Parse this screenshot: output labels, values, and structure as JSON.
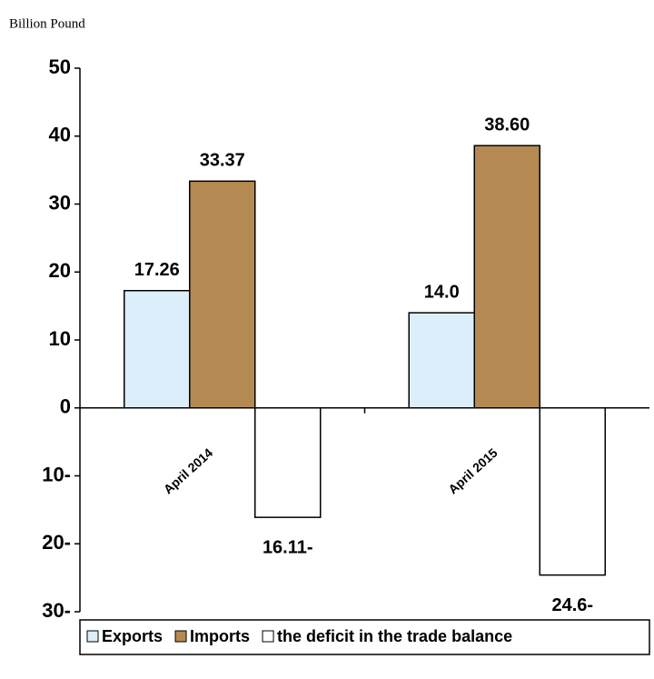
{
  "chart_data": {
    "type": "bar",
    "y_label": "Billion Pound",
    "categories": [
      "April 2014",
      "April 2015"
    ],
    "series": [
      {
        "name": "Exports",
        "color": "#dceefa",
        "values": [
          17.26,
          14.0
        ],
        "value_labels": [
          "17.26",
          "14.0"
        ]
      },
      {
        "name": "Imports",
        "color": "#b48a52",
        "values": [
          33.37,
          38.6
        ],
        "value_labels": [
          "33.37",
          "38.60"
        ]
      },
      {
        "name": "the deficit in the trade balance",
        "color": "#ffffff",
        "values": [
          -16.11,
          -24.6
        ],
        "value_labels": [
          "16.11-",
          "24.6-"
        ]
      }
    ],
    "ylim": [
      -30,
      50
    ],
    "yticks": [
      {
        "value": -30,
        "label": "30-"
      },
      {
        "value": -20,
        "label": "20-"
      },
      {
        "value": -10,
        "label": "10-"
      },
      0,
      10,
      20,
      30,
      40,
      50
    ],
    "legend": "bottom"
  }
}
